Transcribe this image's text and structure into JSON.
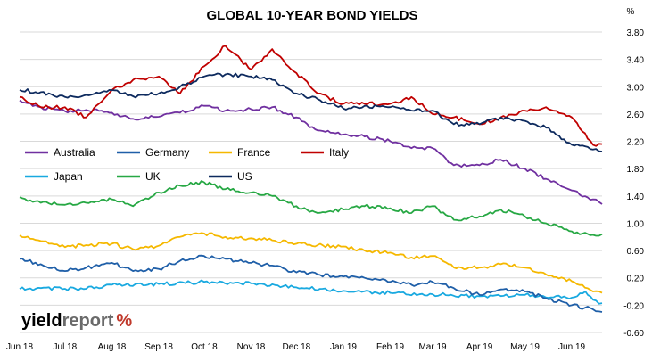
{
  "chart_data": {
    "type": "line",
    "title": "GLOBAL 10-YEAR BOND YIELDS",
    "ylabel": "%",
    "ylim": [
      -0.6,
      4.0
    ],
    "yticks": [
      "3.80",
      "3.40",
      "3.00",
      "2.60",
      "2.20",
      "1.80",
      "1.40",
      "1.00",
      "0.60",
      "0.20",
      "-0.20",
      "-0.60"
    ],
    "ytick_values": [
      3.8,
      3.4,
      3.0,
      2.6,
      2.2,
      1.8,
      1.4,
      1.0,
      0.6,
      0.2,
      -0.2,
      -0.6
    ],
    "y_axis_position": "right",
    "grid": "horizontal",
    "legend_position": "center-left",
    "xticks": [
      "Jun 18",
      "Jul 18",
      "Aug 18",
      "Sep 18",
      "Oct 18",
      "Nov 18",
      "Dec 18",
      "Jan 19",
      "Feb 19",
      "Mar 19",
      "Apr 19",
      "May 19",
      "Jun 19"
    ],
    "x_range": [
      "2018-06-01",
      "2019-06-21"
    ],
    "series": [
      {
        "name": "Australia",
        "color": "#7030a0",
        "points": [
          [
            "2018-06-01",
            2.8
          ],
          [
            "2018-06-15",
            2.7
          ],
          [
            "2018-07-01",
            2.64
          ],
          [
            "2018-07-15",
            2.66
          ],
          [
            "2018-08-01",
            2.62
          ],
          [
            "2018-08-15",
            2.53
          ],
          [
            "2018-09-01",
            2.56
          ],
          [
            "2018-09-15",
            2.62
          ],
          [
            "2018-10-01",
            2.72
          ],
          [
            "2018-10-15",
            2.65
          ],
          [
            "2018-11-01",
            2.67
          ],
          [
            "2018-11-15",
            2.7
          ],
          [
            "2018-12-01",
            2.55
          ],
          [
            "2018-12-15",
            2.36
          ],
          [
            "2019-01-01",
            2.3
          ],
          [
            "2019-01-15",
            2.27
          ],
          [
            "2019-02-01",
            2.2
          ],
          [
            "2019-02-15",
            2.1
          ],
          [
            "2019-03-01",
            2.1
          ],
          [
            "2019-03-15",
            1.85
          ],
          [
            "2019-04-01",
            1.85
          ],
          [
            "2019-04-15",
            1.93
          ],
          [
            "2019-05-01",
            1.8
          ],
          [
            "2019-05-15",
            1.65
          ],
          [
            "2019-06-01",
            1.48
          ],
          [
            "2019-06-15",
            1.35
          ],
          [
            "2019-06-21",
            1.28
          ]
        ]
      },
      {
        "name": "Germany",
        "color": "#1f5fa8",
        "points": [
          [
            "2018-06-01",
            0.48
          ],
          [
            "2018-06-15",
            0.4
          ],
          [
            "2018-07-01",
            0.3
          ],
          [
            "2018-07-15",
            0.35
          ],
          [
            "2018-08-01",
            0.42
          ],
          [
            "2018-08-15",
            0.3
          ],
          [
            "2018-09-01",
            0.33
          ],
          [
            "2018-09-15",
            0.45
          ],
          [
            "2018-10-01",
            0.52
          ],
          [
            "2018-10-15",
            0.48
          ],
          [
            "2018-11-01",
            0.42
          ],
          [
            "2018-11-15",
            0.38
          ],
          [
            "2018-12-01",
            0.28
          ],
          [
            "2018-12-15",
            0.25
          ],
          [
            "2019-01-01",
            0.22
          ],
          [
            "2019-01-15",
            0.2
          ],
          [
            "2019-02-01",
            0.14
          ],
          [
            "2019-02-15",
            0.1
          ],
          [
            "2019-03-01",
            0.14
          ],
          [
            "2019-03-15",
            0.05
          ],
          [
            "2019-04-01",
            -0.05
          ],
          [
            "2019-04-15",
            0.03
          ],
          [
            "2019-05-01",
            0.0
          ],
          [
            "2019-05-15",
            -0.1
          ],
          [
            "2019-06-01",
            -0.2
          ],
          [
            "2019-06-15",
            -0.26
          ],
          [
            "2019-06-21",
            -0.3
          ]
        ]
      },
      {
        "name": "France",
        "color": "#f5b800",
        "points": [
          [
            "2018-06-01",
            0.82
          ],
          [
            "2018-06-15",
            0.74
          ],
          [
            "2018-07-01",
            0.65
          ],
          [
            "2018-07-15",
            0.68
          ],
          [
            "2018-08-01",
            0.7
          ],
          [
            "2018-08-15",
            0.62
          ],
          [
            "2018-09-01",
            0.67
          ],
          [
            "2018-09-15",
            0.8
          ],
          [
            "2018-10-01",
            0.85
          ],
          [
            "2018-10-15",
            0.8
          ],
          [
            "2018-11-01",
            0.78
          ],
          [
            "2018-11-15",
            0.75
          ],
          [
            "2018-12-01",
            0.7
          ],
          [
            "2018-12-15",
            0.68
          ],
          [
            "2019-01-01",
            0.66
          ],
          [
            "2019-01-15",
            0.6
          ],
          [
            "2019-02-01",
            0.57
          ],
          [
            "2019-02-15",
            0.5
          ],
          [
            "2019-03-01",
            0.52
          ],
          [
            "2019-03-15",
            0.35
          ],
          [
            "2019-04-01",
            0.35
          ],
          [
            "2019-04-15",
            0.4
          ],
          [
            "2019-05-01",
            0.35
          ],
          [
            "2019-05-15",
            0.25
          ],
          [
            "2019-06-01",
            0.15
          ],
          [
            "2019-06-15",
            0.0
          ],
          [
            "2019-06-21",
            -0.02
          ]
        ]
      },
      {
        "name": "Italy",
        "color": "#c00000",
        "points": [
          [
            "2018-06-01",
            2.85
          ],
          [
            "2018-06-15",
            2.7
          ],
          [
            "2018-07-01",
            2.7
          ],
          [
            "2018-07-15",
            2.55
          ],
          [
            "2018-08-01",
            2.95
          ],
          [
            "2018-08-15",
            3.1
          ],
          [
            "2018-09-01",
            3.15
          ],
          [
            "2018-09-15",
            2.9
          ],
          [
            "2018-10-01",
            3.3
          ],
          [
            "2018-10-15",
            3.6
          ],
          [
            "2018-11-01",
            3.25
          ],
          [
            "2018-11-15",
            3.55
          ],
          [
            "2018-12-01",
            3.2
          ],
          [
            "2018-12-15",
            2.9
          ],
          [
            "2019-01-01",
            2.75
          ],
          [
            "2019-01-15",
            2.75
          ],
          [
            "2019-02-01",
            2.75
          ],
          [
            "2019-02-15",
            2.85
          ],
          [
            "2019-03-01",
            2.6
          ],
          [
            "2019-03-15",
            2.55
          ],
          [
            "2019-04-01",
            2.45
          ],
          [
            "2019-04-15",
            2.55
          ],
          [
            "2019-05-01",
            2.65
          ],
          [
            "2019-05-15",
            2.7
          ],
          [
            "2019-06-01",
            2.55
          ],
          [
            "2019-06-15",
            2.15
          ],
          [
            "2019-06-21",
            2.16
          ]
        ]
      },
      {
        "name": "Japan",
        "color": "#19a9e0",
        "points": [
          [
            "2018-06-01",
            0.04
          ],
          [
            "2018-07-01",
            0.04
          ],
          [
            "2018-07-15",
            0.04
          ],
          [
            "2018-08-01",
            0.1
          ],
          [
            "2018-09-01",
            0.11
          ],
          [
            "2018-10-01",
            0.14
          ],
          [
            "2018-11-01",
            0.12
          ],
          [
            "2018-12-01",
            0.06
          ],
          [
            "2019-01-01",
            0.01
          ],
          [
            "2019-02-01",
            -0.02
          ],
          [
            "2019-03-01",
            -0.04
          ],
          [
            "2019-04-01",
            -0.07
          ],
          [
            "2019-05-01",
            -0.05
          ],
          [
            "2019-06-01",
            -0.09
          ],
          [
            "2019-06-10",
            0.0
          ],
          [
            "2019-06-15",
            -0.12
          ],
          [
            "2019-06-21",
            -0.17
          ]
        ]
      },
      {
        "name": "UK",
        "color": "#27a844",
        "points": [
          [
            "2018-06-01",
            1.38
          ],
          [
            "2018-06-15",
            1.3
          ],
          [
            "2018-07-01",
            1.27
          ],
          [
            "2018-07-15",
            1.3
          ],
          [
            "2018-08-01",
            1.35
          ],
          [
            "2018-08-15",
            1.25
          ],
          [
            "2018-09-01",
            1.45
          ],
          [
            "2018-09-15",
            1.55
          ],
          [
            "2018-10-01",
            1.6
          ],
          [
            "2018-10-15",
            1.5
          ],
          [
            "2018-11-01",
            1.45
          ],
          [
            "2018-11-15",
            1.4
          ],
          [
            "2018-12-01",
            1.25
          ],
          [
            "2018-12-15",
            1.15
          ],
          [
            "2019-01-01",
            1.2
          ],
          [
            "2019-01-15",
            1.25
          ],
          [
            "2019-02-01",
            1.22
          ],
          [
            "2019-02-15",
            1.15
          ],
          [
            "2019-03-01",
            1.25
          ],
          [
            "2019-03-15",
            1.05
          ],
          [
            "2019-04-01",
            1.1
          ],
          [
            "2019-04-15",
            1.2
          ],
          [
            "2019-05-01",
            1.1
          ],
          [
            "2019-05-15",
            1.0
          ],
          [
            "2019-06-01",
            0.88
          ],
          [
            "2019-06-15",
            0.83
          ],
          [
            "2019-06-21",
            0.84
          ]
        ]
      },
      {
        "name": "US",
        "color": "#0d2a5e",
        "points": [
          [
            "2018-06-01",
            2.95
          ],
          [
            "2018-06-15",
            2.92
          ],
          [
            "2018-07-01",
            2.85
          ],
          [
            "2018-07-15",
            2.88
          ],
          [
            "2018-08-01",
            2.95
          ],
          [
            "2018-08-15",
            2.86
          ],
          [
            "2018-09-01",
            2.9
          ],
          [
            "2018-09-15",
            3.0
          ],
          [
            "2018-10-01",
            3.15
          ],
          [
            "2018-10-15",
            3.18
          ],
          [
            "2018-11-01",
            3.15
          ],
          [
            "2018-11-15",
            3.1
          ],
          [
            "2018-12-01",
            2.9
          ],
          [
            "2018-12-15",
            2.82
          ],
          [
            "2019-01-01",
            2.68
          ],
          [
            "2019-01-15",
            2.72
          ],
          [
            "2019-02-01",
            2.7
          ],
          [
            "2019-02-15",
            2.65
          ],
          [
            "2019-03-01",
            2.65
          ],
          [
            "2019-03-15",
            2.45
          ],
          [
            "2019-04-01",
            2.45
          ],
          [
            "2019-04-15",
            2.55
          ],
          [
            "2019-05-01",
            2.5
          ],
          [
            "2019-05-15",
            2.4
          ],
          [
            "2019-06-01",
            2.15
          ],
          [
            "2019-06-15",
            2.08
          ],
          [
            "2019-06-21",
            2.05
          ]
        ]
      }
    ]
  },
  "logo": {
    "part1": "yield",
    "part2": "report",
    "part3": "%"
  }
}
